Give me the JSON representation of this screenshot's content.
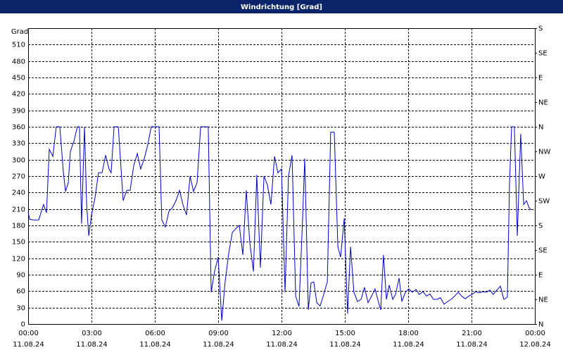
{
  "chart_data": {
    "type": "line",
    "title": "Windrichtung [Grad]",
    "y_label": "Grad",
    "color": "#0000cc",
    "grid": true,
    "xlim": [
      0,
      24
    ],
    "xticks": [
      {
        "value": 0,
        "label": "00:00",
        "date": "11.08.24"
      },
      {
        "value": 3,
        "label": "03:00",
        "date": "11.08.24"
      },
      {
        "value": 6,
        "label": "06:00",
        "date": "11.08.24"
      },
      {
        "value": 9,
        "label": "09:00",
        "date": "11.08.24"
      },
      {
        "value": 12,
        "label": "12:00",
        "date": "11.08.24"
      },
      {
        "value": 15,
        "label": "15:00",
        "date": "11.08.24"
      },
      {
        "value": 18,
        "label": "18:00",
        "date": "11.08.24"
      },
      {
        "value": 21,
        "label": "21:00",
        "date": "11.08.24"
      },
      {
        "value": 24,
        "label": "00:00",
        "date": "12.08.24"
      }
    ],
    "ylim": [
      0,
      540
    ],
    "yticks": [
      0,
      30,
      60,
      90,
      120,
      150,
      180,
      210,
      240,
      270,
      300,
      330,
      360,
      390,
      420,
      450,
      480,
      510
    ],
    "y2lim": [
      0,
      540
    ],
    "y2ticks": [
      {
        "value": 0,
        "label": "N"
      },
      {
        "value": 45,
        "label": "NE"
      },
      {
        "value": 90,
        "label": "E"
      },
      {
        "value": 135,
        "label": "SE"
      },
      {
        "value": 180,
        "label": "S"
      },
      {
        "value": 225,
        "label": "SW"
      },
      {
        "value": 270,
        "label": "W"
      },
      {
        "value": 315,
        "label": "NW"
      },
      {
        "value": 360,
        "label": "N"
      },
      {
        "value": 405,
        "label": "NE"
      },
      {
        "value": 450,
        "label": "E"
      },
      {
        "value": 495,
        "label": "SE"
      },
      {
        "value": 540,
        "label": "S"
      }
    ],
    "x": [
      0,
      0.07,
      0.27,
      0.5,
      0.73,
      0.87,
      1,
      1.17,
      1.33,
      1.5,
      1.67,
      1.77,
      1.9,
      2,
      2.17,
      2.33,
      2.43,
      2.53,
      2.67,
      2.77,
      2.87,
      3,
      3.17,
      3.33,
      3.5,
      3.67,
      3.83,
      3.93,
      4.07,
      4.27,
      4.5,
      4.67,
      4.83,
      5,
      5.17,
      5.33,
      5.5,
      5.67,
      5.83,
      6.07,
      6.2,
      6.33,
      6.5,
      6.67,
      6.83,
      7,
      7.17,
      7.33,
      7.5,
      7.67,
      7.83,
      8,
      8.17,
      8.43,
      8.53,
      8.67,
      8.83,
      9,
      9.17,
      9.33,
      9.5,
      9.67,
      9.83,
      10,
      10.17,
      10.33,
      10.5,
      10.67,
      10.83,
      11,
      11.17,
      11.33,
      11.5,
      11.67,
      11.83,
      12,
      12.17,
      12.33,
      12.5,
      12.67,
      12.83,
      13,
      13.1,
      13.27,
      13.4,
      13.53,
      13.67,
      13.83,
      14,
      14.17,
      14.33,
      14.5,
      14.67,
      14.8,
      14.97,
      15.13,
      15.27,
      15.43,
      15.6,
      15.77,
      15.93,
      16.1,
      16.27,
      16.43,
      16.6,
      16.7,
      16.83,
      16.97,
      17.1,
      17.27,
      17.4,
      17.57,
      17.7,
      17.87,
      18.03,
      18.2,
      18.37,
      18.53,
      18.7,
      18.87,
      19.03,
      19.2,
      19.37,
      19.53,
      19.7,
      19.87,
      20.03,
      20.2,
      20.37,
      20.53,
      20.7,
      20.87,
      21.03,
      21.2,
      21.37,
      21.53,
      21.7,
      21.87,
      22.03,
      22.2,
      22.37,
      22.53,
      22.7,
      22.8,
      22.9,
      23.03,
      23.17,
      23.33,
      23.47,
      23.6,
      23.73,
      23.83
    ],
    "values": [
      205,
      191,
      190,
      190,
      218,
      203,
      319,
      306,
      360,
      360,
      276,
      242,
      258,
      315,
      334,
      360,
      360,
      183,
      360,
      218,
      161,
      199,
      231,
      276,
      276,
      308,
      283,
      276,
      360,
      360,
      225,
      244,
      244,
      289,
      311,
      283,
      302,
      328,
      360,
      360,
      360,
      190,
      177,
      206,
      212,
      225,
      244,
      218,
      199,
      270,
      242,
      258,
      360,
      360,
      360,
      58,
      96,
      122,
      6,
      77,
      129,
      167,
      174,
      180,
      126,
      244,
      148,
      96,
      272,
      103,
      270,
      254,
      218,
      306,
      276,
      283,
      58,
      270,
      308,
      51,
      32,
      193,
      302,
      26,
      75,
      77,
      39,
      33,
      54,
      77,
      350,
      350,
      141,
      122,
      193,
      19,
      141,
      58,
      41,
      45,
      67,
      39,
      51,
      64,
      39,
      26,
      126,
      45,
      71,
      45,
      54,
      84,
      41,
      58,
      64,
      58,
      63,
      54,
      59,
      51,
      55,
      45,
      45,
      48,
      36,
      41,
      45,
      51,
      58,
      51,
      46,
      51,
      54,
      59,
      57,
      59,
      58,
      62,
      54,
      62,
      69,
      45,
      49,
      257,
      360,
      360,
      161,
      347,
      218,
      225,
      212,
      208
    ]
  }
}
